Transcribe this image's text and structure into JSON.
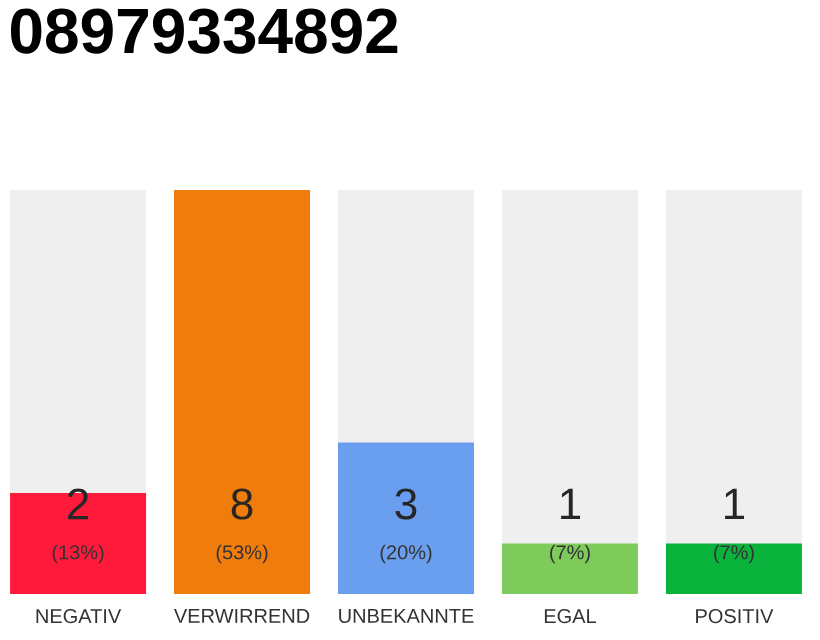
{
  "chart_data": {
    "type": "bar",
    "title": "08979334892",
    "categories": [
      "NEGATIV",
      "VERWIRREND",
      "UNBEKANNTE",
      "EGAL",
      "POSITIV"
    ],
    "values": [
      2,
      8,
      3,
      1,
      1
    ],
    "colors": [
      "#ff1a3c",
      "#f07d0b",
      "#6a9ff0",
      "#7dcb5a",
      "#0ab43c"
    ],
    "ylim": [
      0,
      8
    ],
    "data_labels": true,
    "tick_labels": "x",
    "annotations": [
      "(13%)",
      "(53%)",
      "(20%)",
      "(7%)",
      "(7%)"
    ]
  }
}
